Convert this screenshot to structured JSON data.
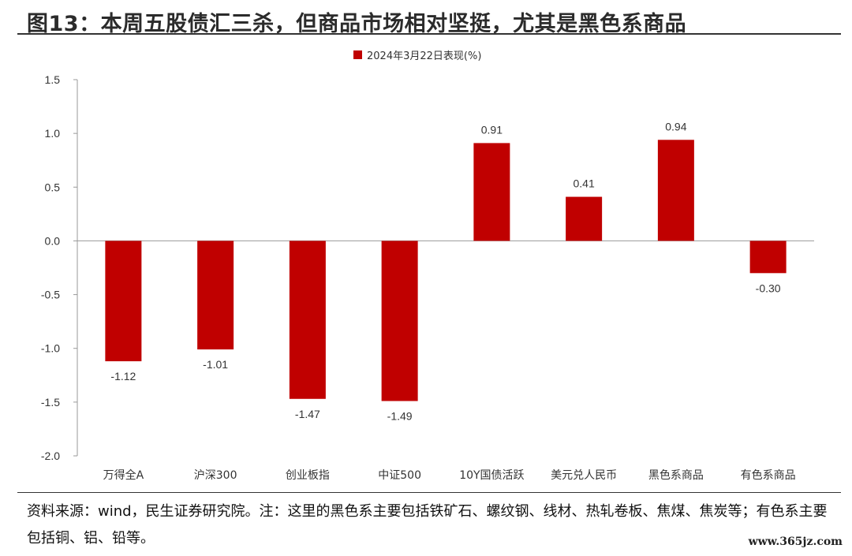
{
  "title": "图13：本周五股债汇三杀，但商品市场相对坚挺，尤其是黑色系商品",
  "note": "资料来源：wind，民生证券研究院。注：这里的黑色系主要包括铁矿石、螺纹钢、线材、热轧卷板、焦煤、焦炭等；有色系主要包括铜、铝、铅等。",
  "watermark": "www.365jz.com",
  "colors": {
    "bar": "#c00000",
    "axis": "#999999"
  },
  "chart_data": {
    "type": "bar",
    "categories": [
      "万得全A",
      "沪深300",
      "创业板指",
      "中证500",
      "10Y国债活跃",
      "美元兑人民币",
      "黑色系商品",
      "有色系商品"
    ],
    "series": [
      {
        "name": "2024年3月22日表现(%)",
        "values": [
          -1.12,
          -1.01,
          -1.47,
          -1.49,
          0.91,
          0.41,
          0.94,
          -0.3
        ]
      }
    ],
    "data_labels": [
      "-1.12",
      "-1.01",
      "-1.47",
      "-1.49",
      "0.91",
      "0.41",
      "0.94",
      "-0.30"
    ],
    "yticks": [
      "1.5",
      "1.0",
      "0.5",
      "0.0",
      "-0.5",
      "-1.0",
      "-1.5",
      "-2.0"
    ],
    "ylim": [
      -2.0,
      1.5
    ],
    "legend_position": "top-center",
    "grid": false
  }
}
